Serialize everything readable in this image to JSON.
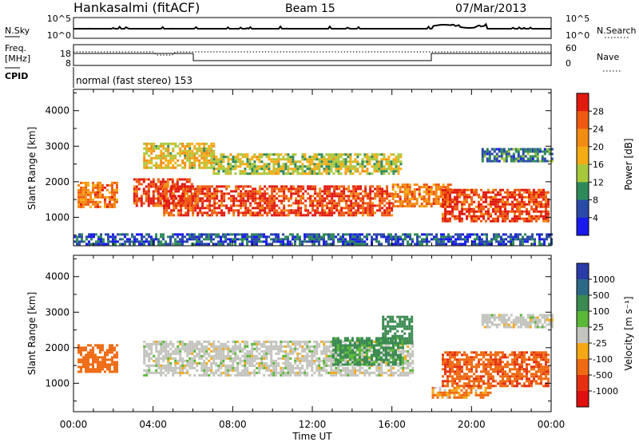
{
  "header": {
    "station": "Hankasalmi (fitACF)",
    "beam": "Beam 15",
    "date": "07/Mar/2013"
  },
  "noise_panel": {
    "left_label": "N.Sky",
    "right_label": "N.Search",
    "left_ticks": [
      "10^5",
      "10^0"
    ],
    "right_ticks": [
      "10^5",
      "10^0"
    ]
  },
  "freq_panel": {
    "label_line1": "Freq.",
    "label_line2": "[MHz]",
    "left_ticks": [
      "18",
      "8"
    ],
    "right_label": "Nave",
    "right_ticks": [
      "60",
      "0"
    ]
  },
  "cpid": {
    "label": "CPID",
    "text": "normal (fast stereo) 153"
  },
  "x_axis": {
    "label": "Time UT",
    "ticks": [
      "00:00",
      "04:00",
      "08:00",
      "12:00",
      "16:00",
      "20:00",
      "00:00"
    ]
  },
  "power_panel": {
    "ylabel": "Slant Range [km]",
    "yticks": [
      "4000",
      "3000",
      "2000",
      "1000"
    ],
    "scale_label": "Power [dB]",
    "scale_ticks": [
      "28",
      "24",
      "20",
      "16",
      "12",
      "8",
      "4"
    ],
    "scale_colors": [
      "#e11a10",
      "#ee5a12",
      "#f38c12",
      "#f5ac14",
      "#a8c83c",
      "#2e8a5a",
      "#2a4aa8",
      "#1a1aee"
    ]
  },
  "velocity_panel": {
    "ylabel": "Slant Range [km]",
    "yticks": [
      "4000",
      "3000",
      "2000",
      "1000"
    ],
    "scale_label": "Velocity [m s⁻¹]",
    "scale_ticks": [
      "1000",
      "500",
      "100",
      "25",
      "-25",
      "-100",
      "-500",
      "-1000"
    ],
    "scale_colors": [
      "#2a3aa8",
      "#2a6a86",
      "#3a8a52",
      "#5ab838",
      "#c4c4be",
      "#f5a814",
      "#ef6a12",
      "#e43010",
      "#e01010"
    ]
  },
  "chart_data": {
    "type": "heatmap",
    "title": "Hankasalmi (fitACF) Beam 15 07/Mar/2013",
    "xlabel": "Time UT",
    "ylabel": "Slant Range [km]",
    "xlim": [
      0,
      24
    ],
    "ylim": [
      200,
      4600
    ],
    "panels": [
      {
        "name": "Power [dB]",
        "range": [
          0,
          30
        ],
        "regions": [
          {
            "t": [
              0.2,
              2.2
            ],
            "r": [
              1300,
              2000
            ],
            "value": 22
          },
          {
            "t": [
              3.0,
              6.0
            ],
            "r": [
              1300,
              2100
            ],
            "value": 26
          },
          {
            "t": [
              4.5,
              16.0
            ],
            "r": [
              1050,
              1900
            ],
            "value": 26
          },
          {
            "t": [
              3.5,
              7.0
            ],
            "r": [
              2400,
              3100
            ],
            "value": 16
          },
          {
            "t": [
              7.0,
              16.5
            ],
            "r": [
              2200,
              2800
            ],
            "value": 14
          },
          {
            "t": [
              16.0,
              19.0
            ],
            "r": [
              1300,
              1950
            ],
            "value": 22
          },
          {
            "t": [
              18.5,
              23.8
            ],
            "r": [
              900,
              1800
            ],
            "value": 26
          },
          {
            "t": [
              20.5,
              24.0
            ],
            "r": [
              2600,
              2950
            ],
            "value": 8
          },
          {
            "t": [
              0.0,
              24.0
            ],
            "r": [
              250,
              550
            ],
            "value": 6
          }
        ]
      },
      {
        "name": "Velocity [m s⁻¹]",
        "range": [
          -1000,
          1000
        ],
        "regions": [
          {
            "t": [
              0.2,
              2.2
            ],
            "r": [
              1300,
              2100
            ],
            "value": -300
          },
          {
            "t": [
              3.5,
              17.0
            ],
            "r": [
              1200,
              2200
            ],
            "value": 0
          },
          {
            "t": [
              13.0,
              16.5
            ],
            "r": [
              1500,
              2300
            ],
            "value": 150
          },
          {
            "t": [
              15.5,
              17.0
            ],
            "r": [
              2100,
              2900
            ],
            "value": 300
          },
          {
            "t": [
              18.5,
              23.8
            ],
            "r": [
              900,
              1900
            ],
            "value": -400
          },
          {
            "t": [
              18.0,
              21.0
            ],
            "r": [
              600,
              900
            ],
            "value": -100
          },
          {
            "t": [
              20.5,
              24.0
            ],
            "r": [
              2600,
              2950
            ],
            "value": 0
          }
        ]
      }
    ]
  }
}
